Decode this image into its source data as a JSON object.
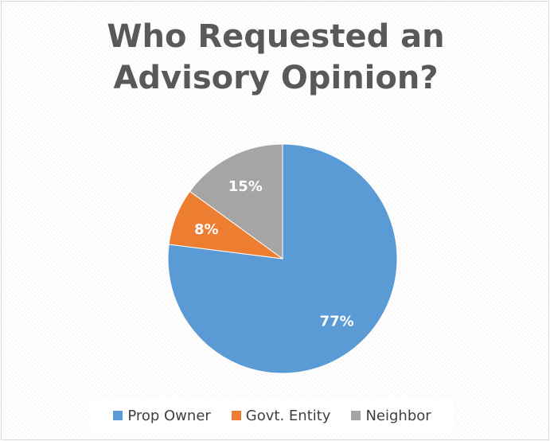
{
  "chart_data": {
    "type": "pie",
    "title": "Who Requested an\nAdvisory Opinion?",
    "categories": [
      "Prop Owner",
      "Govt. Entity",
      "Neighbor"
    ],
    "values": [
      77,
      8,
      15
    ],
    "labels": [
      "77%",
      "8%",
      "15%"
    ],
    "colors": [
      "#5B9BD5",
      "#ED7D31",
      "#A5A5A5"
    ],
    "label_color": "#FFFFFF",
    "legend_position": "bottom"
  }
}
